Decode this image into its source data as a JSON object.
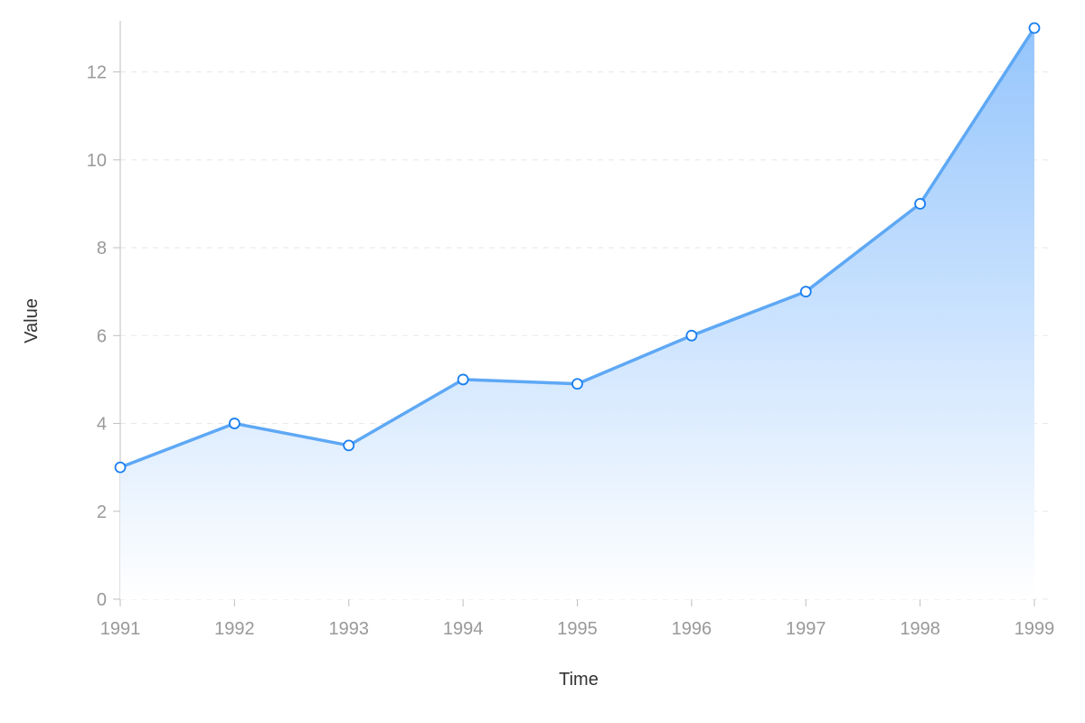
{
  "chart_data": {
    "type": "area",
    "x": [
      "1991",
      "1992",
      "1993",
      "1994",
      "1995",
      "1996",
      "1997",
      "1998",
      "1999"
    ],
    "series": [
      {
        "values": [
          3,
          4,
          3.5,
          5,
          4.9,
          6,
          7,
          9,
          13
        ]
      }
    ],
    "title": "",
    "xlabel": "Time",
    "ylabel": "Value",
    "ylim": [
      0,
      13
    ],
    "yticks": [
      0,
      2,
      4,
      6,
      8,
      10,
      12
    ],
    "grid": "horizontal-dashed",
    "legend": "none",
    "colors": {
      "line": "#5ea8f5",
      "point_stroke": "#1a7ff0",
      "area_top": "#95c5fc",
      "area_bottom": "#ffffff"
    }
  }
}
